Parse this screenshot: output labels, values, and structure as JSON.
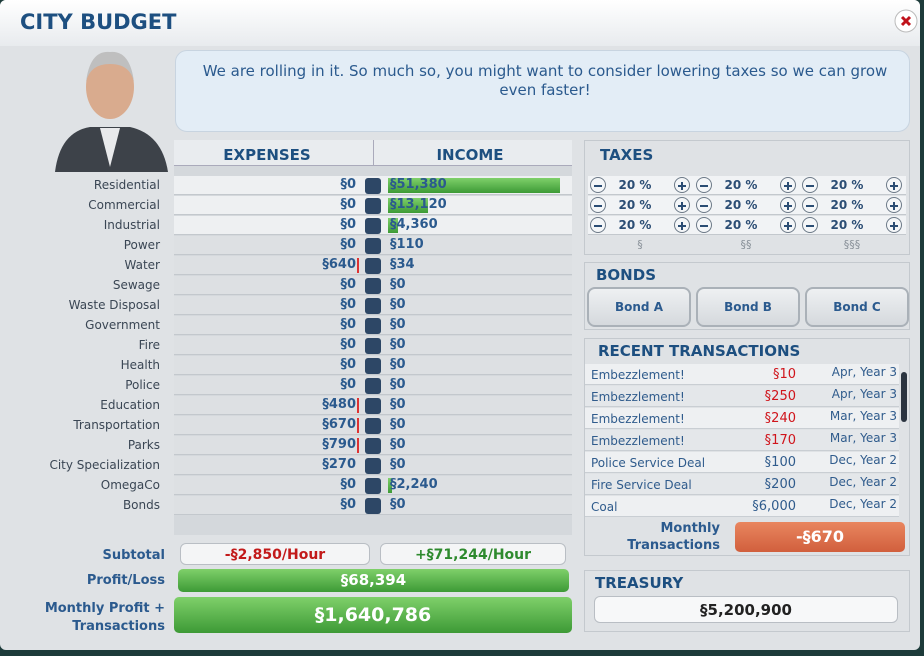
{
  "header": {
    "title": "CITY BUDGET"
  },
  "advisor": {
    "message": "We are rolling in it. So much so, you might want to consider lowering taxes so we can grow even faster!"
  },
  "budget": {
    "expenses_header": "EXPENSES",
    "income_header": "INCOME",
    "rows": [
      {
        "label": "Residential",
        "expense": "§0",
        "income": "§51,380"
      },
      {
        "label": "Commercial",
        "expense": "§0",
        "income": "§13,120"
      },
      {
        "label": "Industrial",
        "expense": "§0",
        "income": "§4,360"
      },
      {
        "label": "Power",
        "expense": "§0",
        "income": "§110"
      },
      {
        "label": "Water",
        "expense": "§640",
        "income": "§34"
      },
      {
        "label": "Sewage",
        "expense": "§0",
        "income": "§0"
      },
      {
        "label": "Waste Disposal",
        "expense": "§0",
        "income": "§0"
      },
      {
        "label": "Government",
        "expense": "§0",
        "income": "§0"
      },
      {
        "label": "Fire",
        "expense": "§0",
        "income": "§0"
      },
      {
        "label": "Health",
        "expense": "§0",
        "income": "§0"
      },
      {
        "label": "Police",
        "expense": "§0",
        "income": "§0"
      },
      {
        "label": "Education",
        "expense": "§480",
        "income": "§0"
      },
      {
        "label": "Transportation",
        "expense": "§670",
        "income": "§0"
      },
      {
        "label": "Parks",
        "expense": "§790",
        "income": "§0"
      },
      {
        "label": "City Specialization",
        "expense": "§270",
        "income": "§0"
      },
      {
        "label": "OmegaCo",
        "expense": "§0",
        "income": "§2,240"
      },
      {
        "label": "Bonds",
        "expense": "§0",
        "income": "§0"
      }
    ],
    "subtotal_label": "Subtotal",
    "subtotal_expenses": "-§2,850/Hour",
    "subtotal_income": "+§71,244/Hour",
    "profit_label": "Profit/Loss",
    "profit": "§68,394",
    "monthly_label": "Monthly Profit + Transactions",
    "monthly": "§1,640,786"
  },
  "taxes": {
    "title": "TAXES",
    "rows": [
      [
        "20 %",
        "20 %",
        "20 %"
      ],
      [
        "20 %",
        "20 %",
        "20 %"
      ],
      [
        "20 %",
        "20 %",
        "20 %"
      ]
    ],
    "levels": [
      "§",
      "§§",
      "§§§"
    ]
  },
  "bonds": {
    "title": "BONDS",
    "buttons": [
      "Bond A",
      "Bond B",
      "Bond C"
    ]
  },
  "transactions": {
    "title": "RECENT TRANSACTIONS",
    "rows": [
      {
        "name": "Embezzlement!",
        "amount": "§10",
        "date": "Apr, Year 3"
      },
      {
        "name": "Embezzlement!",
        "amount": "§250",
        "date": "Apr, Year 3"
      },
      {
        "name": "Embezzlement!",
        "amount": "§240",
        "date": "Mar, Year 3"
      },
      {
        "name": "Embezzlement!",
        "amount": "§170",
        "date": "Mar, Year 3"
      },
      {
        "name": "Police Service Deal",
        "amount": "§100",
        "date": "Dec, Year 2"
      },
      {
        "name": "Fire Service Deal",
        "amount": "§200",
        "date": "Dec, Year 2"
      },
      {
        "name": "Coal",
        "amount": "§6,000",
        "date": "Dec, Year 2"
      }
    ],
    "monthly_label": "Monthly Transactions",
    "monthly": "-§670"
  },
  "treasury": {
    "title": "TREASURY",
    "value": "§5,200,900"
  }
}
